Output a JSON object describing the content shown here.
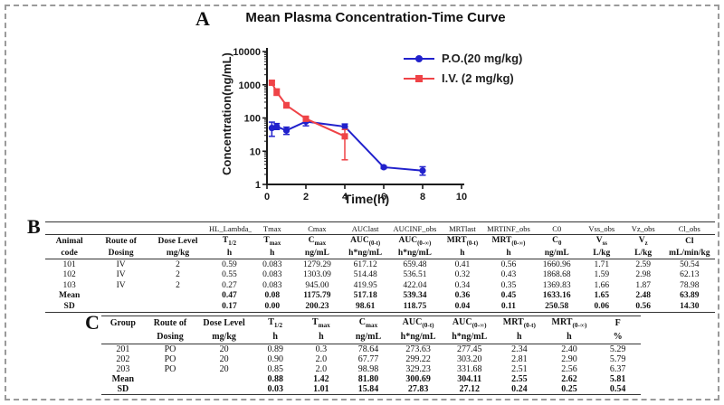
{
  "panelA": {
    "label": "A",
    "title": "Mean Plasma Concentration-Time Curve",
    "xlabel": "Time(h)",
    "ylabel": "Concentration(ng/mL)",
    "legend": [
      {
        "label": "P.O.(20 mg/kg)",
        "marker": "circle",
        "color": "#2121cc"
      },
      {
        "label": "I.V. (2 mg/kg)",
        "marker": "square",
        "color": "#ef4347"
      }
    ]
  },
  "chart_data": {
    "type": "line",
    "title": "Mean Plasma Concentration-Time Curve",
    "xlabel": "Time(h)",
    "ylabel": "Concentration(ng/mL)",
    "x_ticks": [
      0,
      2,
      4,
      6,
      8,
      10
    ],
    "y_ticks": [
      1,
      10,
      100,
      1000,
      10000
    ],
    "xlim": [
      0,
      10
    ],
    "ylim": [
      1,
      10000
    ],
    "y_scale": "log",
    "grid": false,
    "legend_position": "upper right",
    "series": [
      {
        "name": "P.O.(20 mg/kg)",
        "color": "#2121cc",
        "marker": "circle",
        "x": [
          0.25,
          0.5,
          1,
          2,
          4,
          6,
          8
        ],
        "y": [
          50,
          55,
          42,
          78,
          55,
          3.3,
          2.6
        ],
        "y_err_low": [
          28,
          45,
          32,
          58,
          45,
          3.0,
          1.9
        ],
        "y_err_high": [
          75,
          68,
          53,
          97,
          66,
          3.6,
          3.4
        ]
      },
      {
        "name": "I.V. (2 mg/kg)",
        "color": "#ef4347",
        "marker": "square",
        "x": [
          0.25,
          0.5,
          1,
          2,
          4
        ],
        "y": [
          1150,
          600,
          240,
          95,
          28
        ],
        "y_err_low": [
          1000,
          480,
          200,
          80,
          5.5
        ],
        "y_err_high": [
          1300,
          750,
          290,
          112,
          45
        ]
      }
    ]
  },
  "panelB": {
    "label": "B",
    "columns": [
      {
        "top": "",
        "line1": "Animal",
        "line2": "code",
        "w": 7.2
      },
      {
        "top": "",
        "line1": "Route of",
        "line2": "Dosing",
        "w": 8.2
      },
      {
        "top": "",
        "line1": "Dose Level",
        "line2": "mg/kg",
        "w": 8.8
      },
      {
        "top": "HL_Lambda_",
        "base": "T",
        "sub": "1/2",
        "unit": "h",
        "w": 6.6
      },
      {
        "top": "Tmax",
        "base": "T",
        "sub": "max",
        "unit": "h",
        "w": 6.2
      },
      {
        "top": "Cmax",
        "base": "C",
        "sub": "max",
        "unit": "ng/mL",
        "w": 7.2
      },
      {
        "top": "AUClast",
        "base": "AUC",
        "sub": "(0-t)",
        "unit": "h*ng/mL",
        "w": 7.2
      },
      {
        "top": "AUCINF_obs",
        "base": "AUC",
        "sub": "(0-∞)",
        "unit": "h*ng/mL",
        "w": 7.6
      },
      {
        "top": "MRTlast",
        "base": "MRT",
        "sub": "(0-t)",
        "unit": "h",
        "w": 6.6
      },
      {
        "top": "MRTINF_obs",
        "base": "MRT",
        "sub": "(0-∞)",
        "unit": "h",
        "w": 7.2
      },
      {
        "top": "C0",
        "base": "C",
        "sub": "0",
        "unit": "ng/mL",
        "w": 7.2
      },
      {
        "top": "Vss_obs",
        "base": "V",
        "sub": "ss",
        "unit": "L/kg",
        "w": 6.2
      },
      {
        "top": "Vz_obs",
        "base": "V",
        "sub": "z",
        "unit": "L/kg",
        "w": 6.2
      },
      {
        "top": "Cl_obs",
        "base": "Cl",
        "sub": "",
        "unit": "mL/min/kg",
        "w": 7.6
      }
    ],
    "rows": [
      [
        "101",
        "IV",
        "2",
        "0.59",
        "0.083",
        "1279.29",
        "617.12",
        "659.48",
        "0.41",
        "0.56",
        "1660.96",
        "1.71",
        "2.59",
        "50.54"
      ],
      [
        "102",
        "IV",
        "2",
        "0.55",
        "0.083",
        "1303.09",
        "514.48",
        "536.51",
        "0.32",
        "0.43",
        "1868.68",
        "1.59",
        "2.98",
        "62.13"
      ],
      [
        "103",
        "IV",
        "2",
        "0.27",
        "0.083",
        "945.00",
        "419.95",
        "422.04",
        "0.34",
        "0.35",
        "1369.83",
        "1.66",
        "1.87",
        "78.98"
      ],
      [
        "Mean",
        "",
        "",
        "0.47",
        "0.08",
        "1175.79",
        "517.18",
        "539.34",
        "0.36",
        "0.45",
        "1633.16",
        "1.65",
        "2.48",
        "63.89"
      ],
      [
        "SD",
        "",
        "",
        "0.17",
        "0.00",
        "200.23",
        "98.61",
        "118.75",
        "0.04",
        "0.11",
        "250.58",
        "0.06",
        "0.56",
        "14.30"
      ]
    ],
    "bold_rows": [
      "Mean",
      "SD"
    ]
  },
  "panelC": {
    "label": "C",
    "columns": [
      {
        "line1": "Group",
        "line2": "",
        "w": 8.0
      },
      {
        "line1": "Route of",
        "line2": "Dosing",
        "w": 9.5
      },
      {
        "line1": "Dose Level",
        "line2": "mg/kg",
        "w": 10.5
      },
      {
        "base": "T",
        "sub": "1/2",
        "unit": "h",
        "w": 8.5
      },
      {
        "base": "T",
        "sub": "max",
        "unit": "h",
        "w": 8.5
      },
      {
        "base": "C",
        "sub": "max",
        "unit": "ng/mL",
        "w": 9.0
      },
      {
        "base": "AUC",
        "sub": "(0-t)",
        "unit": "h*ng/mL",
        "w": 9.5
      },
      {
        "base": "AUC",
        "sub": "(0-∞)",
        "unit": "h*ng/mL",
        "w": 9.5
      },
      {
        "base": "MRT",
        "sub": "(0-t)",
        "unit": "h",
        "w": 9.0
      },
      {
        "base": "MRT",
        "sub": "(0-∞)",
        "unit": "h",
        "w": 9.5
      },
      {
        "base": "F",
        "sub": "",
        "unit": "%",
        "w": 8.5
      }
    ],
    "rows": [
      [
        "201",
        "PO",
        "20",
        "0.89",
        "0.3",
        "78.64",
        "273.63",
        "277.45",
        "2.34",
        "2.40",
        "5.29"
      ],
      [
        "202",
        "PO",
        "20",
        "0.90",
        "2.0",
        "67.77",
        "299.22",
        "303.20",
        "2.81",
        "2.90",
        "5.79"
      ],
      [
        "203",
        "PO",
        "20",
        "0.85",
        "2.0",
        "98.98",
        "329.23",
        "331.68",
        "2.51",
        "2.56",
        "6.37"
      ],
      [
        "Mean",
        "",
        "",
        "0.88",
        "1.42",
        "81.80",
        "300.69",
        "304.11",
        "2.55",
        "2.62",
        "5.81"
      ],
      [
        "SD",
        "",
        "",
        "0.03",
        "1.01",
        "15.84",
        "27.83",
        "27.12",
        "0.24",
        "0.25",
        "0.54"
      ]
    ],
    "bold_rows": [
      "Mean",
      "SD"
    ]
  }
}
